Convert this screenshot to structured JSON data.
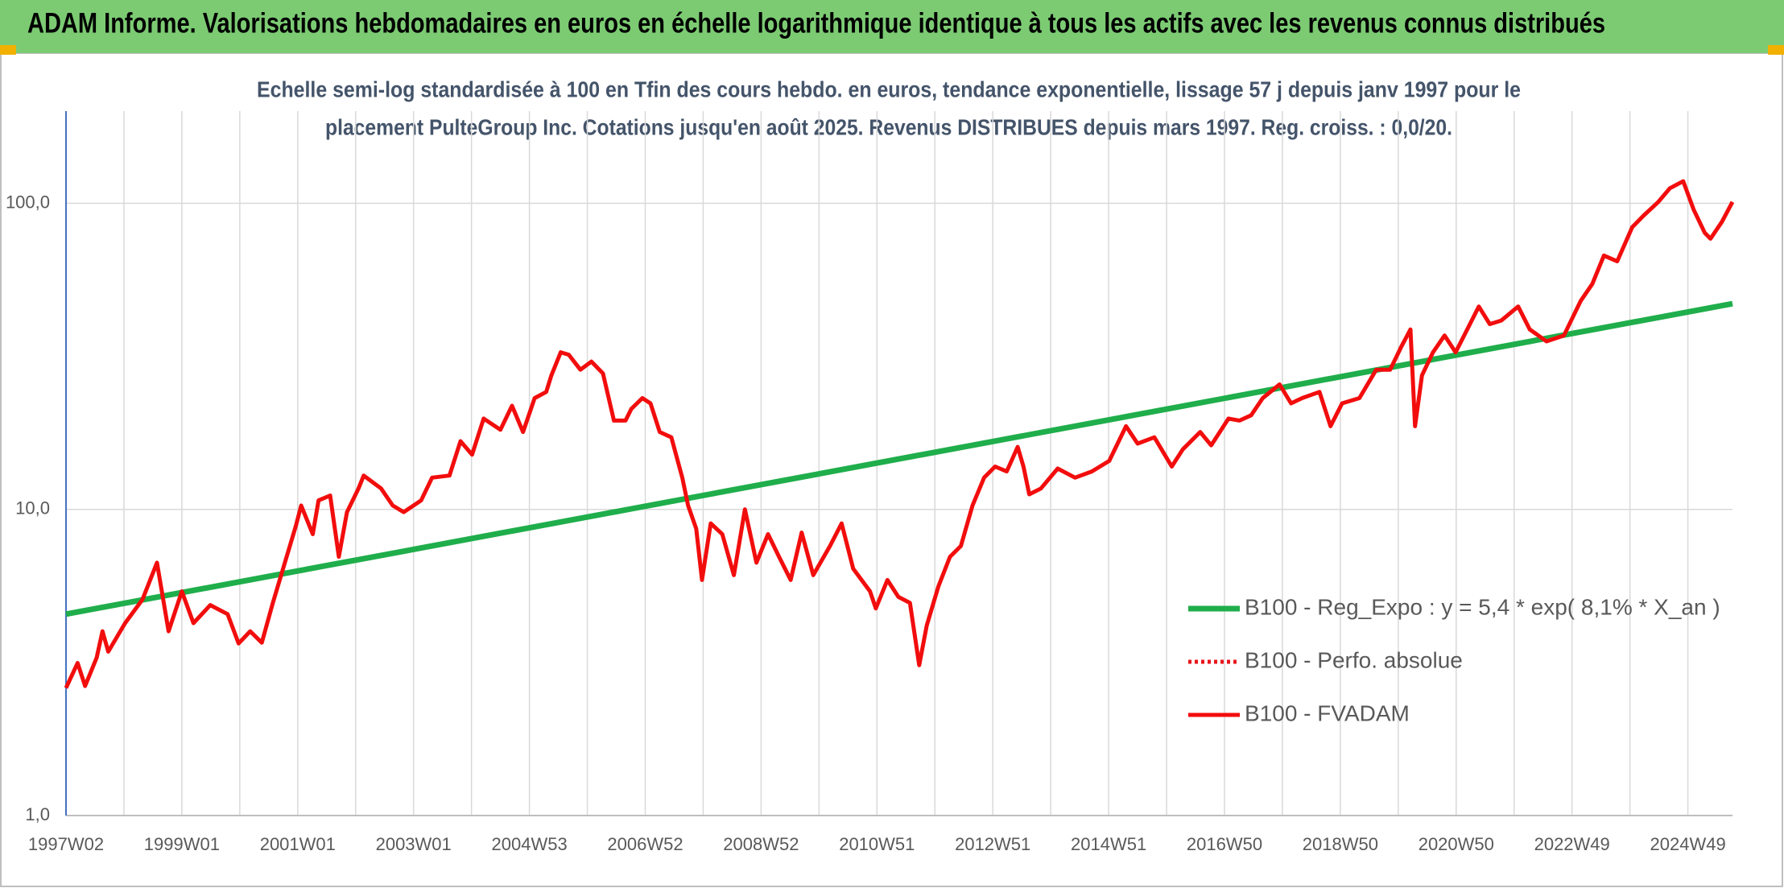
{
  "header": {
    "title": "ADAM Informe. Valorisations hebdomadaires en euros en échelle logarithmique identique à tous les actifs avec les revenus connus distribués"
  },
  "chart_data": {
    "type": "line",
    "log_y": true,
    "grid": true,
    "legend": "right",
    "subtitle_lines": [
      "Echelle semi-log standardisée à 100 en Tfin des cours hebdo. en euros, tendance exponentielle, lissage 57 j depuis janv 1997 pour le",
      "placement PulteGroup Inc. Cotations jusqu'en août 2025. Revenus DISTRIBUES depuis mars 1997. Reg. croiss. : 0,0/20."
    ],
    "xlim": [
      1997.0,
      2025.77
    ],
    "xticks": [
      {
        "value": 1997.0,
        "label": "1997W02"
      },
      {
        "value": 1999.0,
        "label": "1999W01"
      },
      {
        "value": 2001.0,
        "label": "2001W01"
      },
      {
        "value": 2003.0,
        "label": "2003W01"
      },
      {
        "value": 2005.0,
        "label": "2004W53"
      },
      {
        "value": 2007.0,
        "label": "2006W52"
      },
      {
        "value": 2009.0,
        "label": "2008W52"
      },
      {
        "value": 2011.0,
        "label": "2010W51"
      },
      {
        "value": 2013.0,
        "label": "2012W51"
      },
      {
        "value": 2015.0,
        "label": "2014W51"
      },
      {
        "value": 2017.0,
        "label": "2016W50"
      },
      {
        "value": 2019.0,
        "label": "2018W50"
      },
      {
        "value": 2021.0,
        "label": "2020W50"
      },
      {
        "value": 2023.0,
        "label": "2022W49"
      },
      {
        "value": 2025.0,
        "label": "2024W49"
      }
    ],
    "xminor_ticks": [
      1998,
      2000,
      2002,
      2004,
      2006,
      2008,
      2010,
      2012,
      2014,
      2016,
      2018,
      2020,
      2022,
      2024
    ],
    "ylim": [
      1,
      200
    ],
    "yticks": [
      {
        "value": 1,
        "label": "1,0"
      },
      {
        "value": 10,
        "label": "10,0"
      },
      {
        "value": 100,
        "label": "100,0"
      }
    ],
    "series": [
      {
        "name": "B100 - Reg_Expo : y = 5,4 * exp( 8,1% *  X_an )",
        "color": "#1fae4b",
        "dash": "solid",
        "x": [
          1997.0,
          2025.77
        ],
        "values": [
          4.55,
          47
        ]
      },
      {
        "name": "B100 - Perfo. absolue",
        "color": "#e8141c",
        "dash": "dotted",
        "x": [],
        "values": []
      },
      {
        "name": "B100 - FVADAM",
        "color": "#f20d0d",
        "dash": "solid",
        "x": [
          1997.0,
          1997.2,
          1997.33,
          1997.53,
          1997.63,
          1997.73,
          1998.02,
          1998.32,
          1998.57,
          1998.77,
          1999.0,
          1999.2,
          1999.49,
          1999.79,
          1999.98,
          2000.18,
          2000.38,
          2000.57,
          2000.97,
          2001.06,
          2001.26,
          2001.36,
          2001.56,
          2001.71,
          2001.85,
          2002.05,
          2002.14,
          2002.44,
          2002.64,
          2002.83,
          2003.13,
          2003.32,
          2003.62,
          2003.81,
          2004.01,
          2004.21,
          2004.5,
          2004.7,
          2004.89,
          2005.09,
          2005.29,
          2005.38,
          2005.54,
          2005.68,
          2005.88,
          2006.07,
          2006.27,
          2006.46,
          2006.66,
          2006.76,
          2006.95,
          2007.09,
          2007.25,
          2007.45,
          2007.64,
          2007.74,
          2007.88,
          2007.98,
          2008.13,
          2008.33,
          2008.53,
          2008.72,
          2008.92,
          2009.12,
          2009.31,
          2009.51,
          2009.7,
          2009.9,
          2010.19,
          2010.39,
          2010.59,
          2010.88,
          2010.98,
          2011.18,
          2011.37,
          2011.57,
          2011.73,
          2011.86,
          2012.06,
          2012.26,
          2012.45,
          2012.65,
          2012.85,
          2013.04,
          2013.24,
          2013.43,
          2013.53,
          2013.63,
          2013.83,
          2014.12,
          2014.42,
          2014.71,
          2015.01,
          2015.3,
          2015.5,
          2015.79,
          2016.09,
          2016.28,
          2016.58,
          2016.77,
          2017.07,
          2017.26,
          2017.46,
          2017.66,
          2017.95,
          2018.15,
          2018.34,
          2018.64,
          2018.83,
          2019.03,
          2019.33,
          2019.62,
          2019.86,
          2020.05,
          2020.21,
          2020.29,
          2020.41,
          2020.6,
          2020.8,
          2020.99,
          2021.19,
          2021.39,
          2021.58,
          2021.78,
          2022.07,
          2022.27,
          2022.56,
          2022.86,
          2023.15,
          2023.35,
          2023.55,
          2023.78,
          2024.04,
          2024.24,
          2024.49,
          2024.69,
          2024.92,
          2025.1,
          2025.29,
          2025.39,
          2025.59,
          2025.77
        ],
        "values": [
          2.61,
          3.15,
          2.65,
          3.28,
          4.0,
          3.43,
          4.25,
          5.08,
          6.7,
          4.0,
          5.4,
          4.25,
          4.87,
          4.55,
          3.65,
          4.0,
          3.67,
          4.95,
          8.85,
          10.3,
          8.3,
          10.7,
          11.1,
          7.0,
          9.8,
          11.7,
          12.9,
          11.7,
          10.3,
          9.8,
          10.7,
          12.7,
          12.9,
          16.7,
          15.1,
          19.8,
          18.2,
          21.8,
          17.9,
          23.1,
          24.2,
          27.4,
          32.6,
          32.0,
          28.6,
          30.4,
          27.8,
          19.5,
          19.5,
          21.3,
          23.1,
          22.2,
          17.9,
          17.2,
          12.7,
          10.3,
          8.65,
          5.88,
          9.0,
          8.3,
          6.1,
          10,
          6.7,
          8.3,
          7.0,
          5.88,
          8.4,
          6.1,
          7.6,
          9.0,
          6.4,
          5.4,
          4.75,
          5.88,
          5.18,
          4.95,
          3.1,
          4.18,
          5.6,
          7.0,
          7.6,
          10.3,
          12.7,
          13.8,
          13.3,
          16.0,
          13.8,
          11.2,
          11.7,
          13.6,
          12.7,
          13.3,
          14.4,
          18.7,
          16.4,
          17.2,
          13.8,
          15.7,
          17.9,
          16.2,
          19.8,
          19.5,
          20.3,
          23.1,
          25.6,
          22.2,
          23.1,
          24.2,
          18.7,
          22.2,
          23.1,
          28.6,
          28.6,
          33.9,
          38.7,
          18.7,
          27.4,
          32.6,
          37.0,
          32.6,
          38.7,
          46,
          40.3,
          41.4,
          46,
          38.7,
          35.4,
          37.0,
          48,
          54.5,
          67.5,
          64.6,
          83.6,
          91.3,
          101,
          112,
          118,
          95.3,
          80.1,
          76.6,
          87.1,
          101
        ]
      }
    ]
  }
}
